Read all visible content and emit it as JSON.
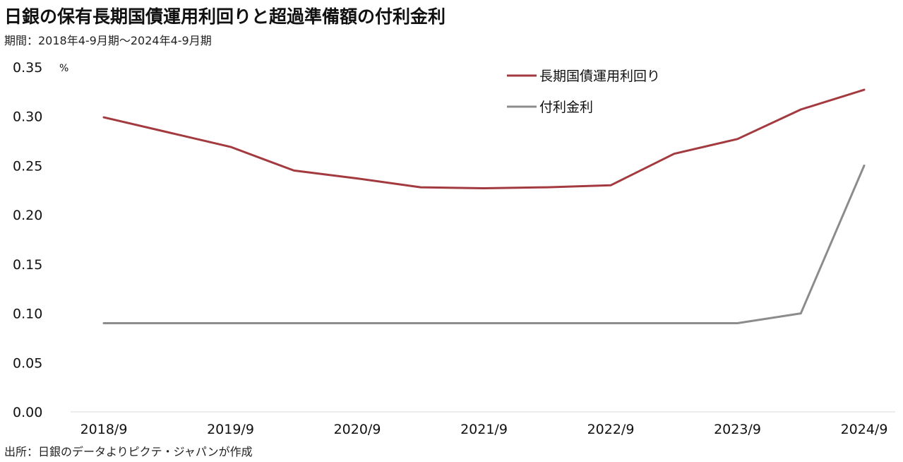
{
  "header": {
    "title": "日銀の保有長期国債運用利回りと超過準備額の付利金利",
    "subtitle": "期間：2018年4-9月期～2024年4-9月期"
  },
  "footer": {
    "source": "出所：日銀のデータよりピクテ・ジャパンが作成"
  },
  "chart_data": {
    "type": "line",
    "title": "",
    "xlabel": "",
    "ylabel": "%",
    "ylim": [
      0,
      0.35
    ],
    "yticks": [
      "0.00",
      "0.05",
      "0.10",
      "0.15",
      "0.20",
      "0.25",
      "0.30",
      "0.35"
    ],
    "x": [
      "2018/9",
      "2019/3",
      "2019/9",
      "2020/3",
      "2020/9",
      "2021/3",
      "2021/9",
      "2022/3",
      "2022/9",
      "2023/3",
      "2023/9",
      "2024/3",
      "2024/9"
    ],
    "xtick_labels": [
      "2018/9",
      "2019/9",
      "2020/9",
      "2021/9",
      "2022/9",
      "2023/9",
      "2024/9"
    ],
    "grid": false,
    "legend_position": "top-right",
    "series": [
      {
        "name": "長期国債運用利回り",
        "color": "#a33a3f",
        "values": [
          0.299,
          0.284,
          0.269,
          0.245,
          0.237,
          0.228,
          0.227,
          0.228,
          0.23,
          0.262,
          0.277,
          0.307,
          0.327
        ]
      },
      {
        "name": "付利金利",
        "color": "#8c8c8c",
        "values": [
          0.09,
          0.09,
          0.09,
          0.09,
          0.09,
          0.09,
          0.09,
          0.09,
          0.09,
          0.09,
          0.09,
          0.1,
          0.25
        ]
      }
    ]
  }
}
